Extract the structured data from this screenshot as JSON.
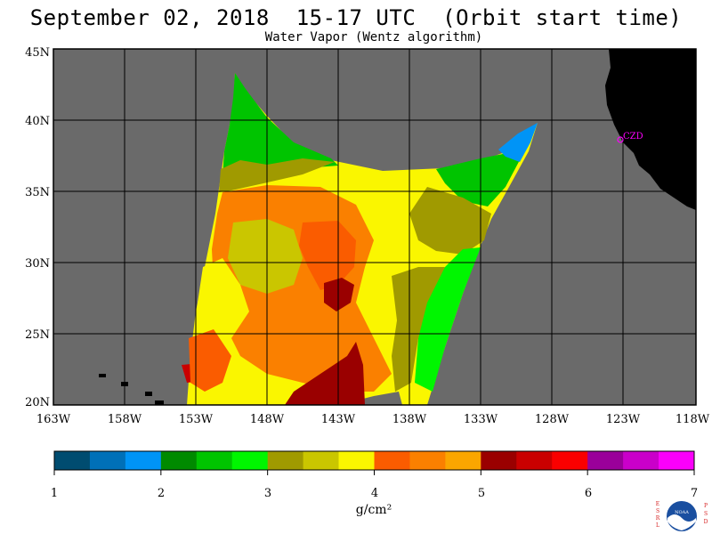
{
  "header": {
    "title": "September 02, 2018  15-17 UTC  (Orbit start time)",
    "subtitle": "Water Vapor (Wentz algorithm)"
  },
  "map": {
    "lat_labels": [
      "45N",
      "40N",
      "35N",
      "30N",
      "25N",
      "20N"
    ],
    "lon_labels": [
      "163W",
      "158W",
      "153W",
      "148W",
      "143W",
      "138W",
      "133W",
      "128W",
      "123W",
      "118W"
    ],
    "station_label": "CZD",
    "colors": {
      "ocean_nodata": "#6a6a6a",
      "land": "#000000",
      "station": "#ff00ff",
      "grid": "#000000"
    }
  },
  "colorbar": {
    "tick_labels": [
      "1",
      "2",
      "3",
      "4",
      "5",
      "6",
      "7"
    ],
    "unit_label": "g/cm²",
    "colors": [
      "#004c70",
      "#0070b8",
      "#0094f6",
      "#008a00",
      "#00c400",
      "#00f600",
      "#a09a00",
      "#cac600",
      "#faf600",
      "#fa5c00",
      "#fa8000",
      "#faa600",
      "#9a0000",
      "#ca0000",
      "#fa0000",
      "#9a009a",
      "#ca00ca",
      "#fa00fa"
    ]
  },
  "logo": {
    "left_letters": "ESRL",
    "right_letters": "PSD",
    "emblem_text": "NOAA"
  }
}
